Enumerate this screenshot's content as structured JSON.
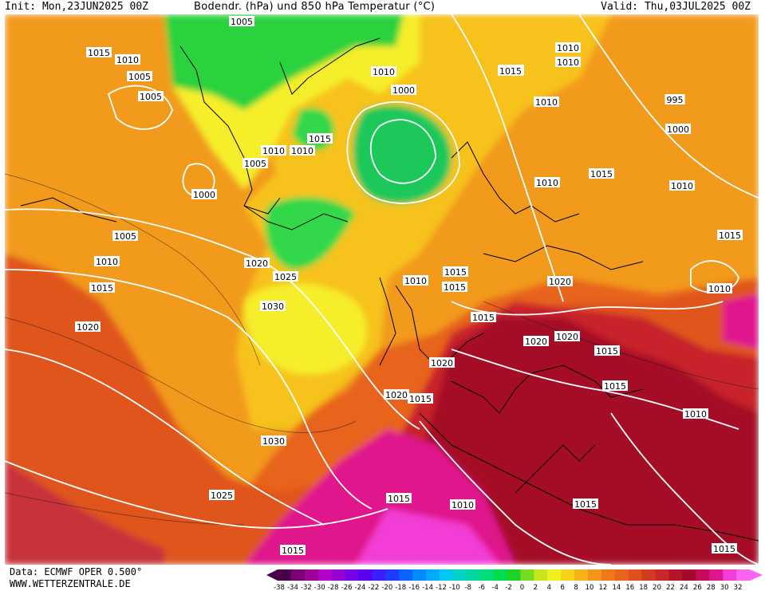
{
  "header": {
    "init": "Init: Mon,23JUN2025 00Z",
    "title": "Bodendr. (hPa) und 850 hPa Temperatur (°C)",
    "valid": "Valid: Thu,03JUL2025 00Z"
  },
  "footer": {
    "data_source": "Data: ECMWF OPER 0.500°",
    "website": "WWW.WETTERZENTRALE.DE"
  },
  "isobar_labels": [
    "1005",
    "1015",
    "1010",
    "1005",
    "1010",
    "1010",
    "1015",
    "1005",
    "1000",
    "1010",
    "1015",
    "1000",
    "1010",
    "1005",
    "1010",
    "1015",
    "1010",
    "1010",
    "995",
    "1000",
    "1015",
    "1010",
    "1005",
    "1010",
    "1015",
    "1020",
    "1025",
    "1030",
    "1020",
    "1015",
    "1015",
    "1010",
    "1020",
    "1020",
    "1020",
    "1020",
    "1015",
    "1020",
    "1015",
    "1010",
    "1030",
    "1025",
    "1015",
    "1015",
    "1015",
    "1015",
    "1010",
    "1015",
    "1010",
    "1015",
    "1015"
  ],
  "colorbar": {
    "labels": [
      "-38",
      "-34",
      "-32",
      "-30",
      "-28",
      "-26",
      "-24",
      "-22",
      "-20",
      "-18",
      "-16",
      "-14",
      "-12",
      "-10",
      "-8",
      "-6",
      "-4",
      "-2",
      "0",
      "2",
      "4",
      "6",
      "8",
      "10",
      "12",
      "14",
      "16",
      "18",
      "20",
      "22",
      "24",
      "26",
      "28",
      "30",
      "32"
    ],
    "colors": [
      "#4a004a",
      "#7a0073",
      "#a0009a",
      "#b400c8",
      "#9600d2",
      "#7800e6",
      "#5a00f0",
      "#3c1eff",
      "#1e3cff",
      "#0a64ff",
      "#008cff",
      "#00aaff",
      "#00c8f0",
      "#00d2c8",
      "#00d7a0",
      "#00dc78",
      "#00dc50",
      "#1ed228",
      "#78dc1e",
      "#c8e61e",
      "#f0f01e",
      "#f7d21a",
      "#f7b41a",
      "#f5961a",
      "#f0781a",
      "#e8641e",
      "#e0501e",
      "#d23c1e",
      "#c8282a",
      "#b41428",
      "#a00a28",
      "#c80a5a",
      "#e0168c",
      "#f23dd6",
      "#fa64f0"
    ]
  }
}
